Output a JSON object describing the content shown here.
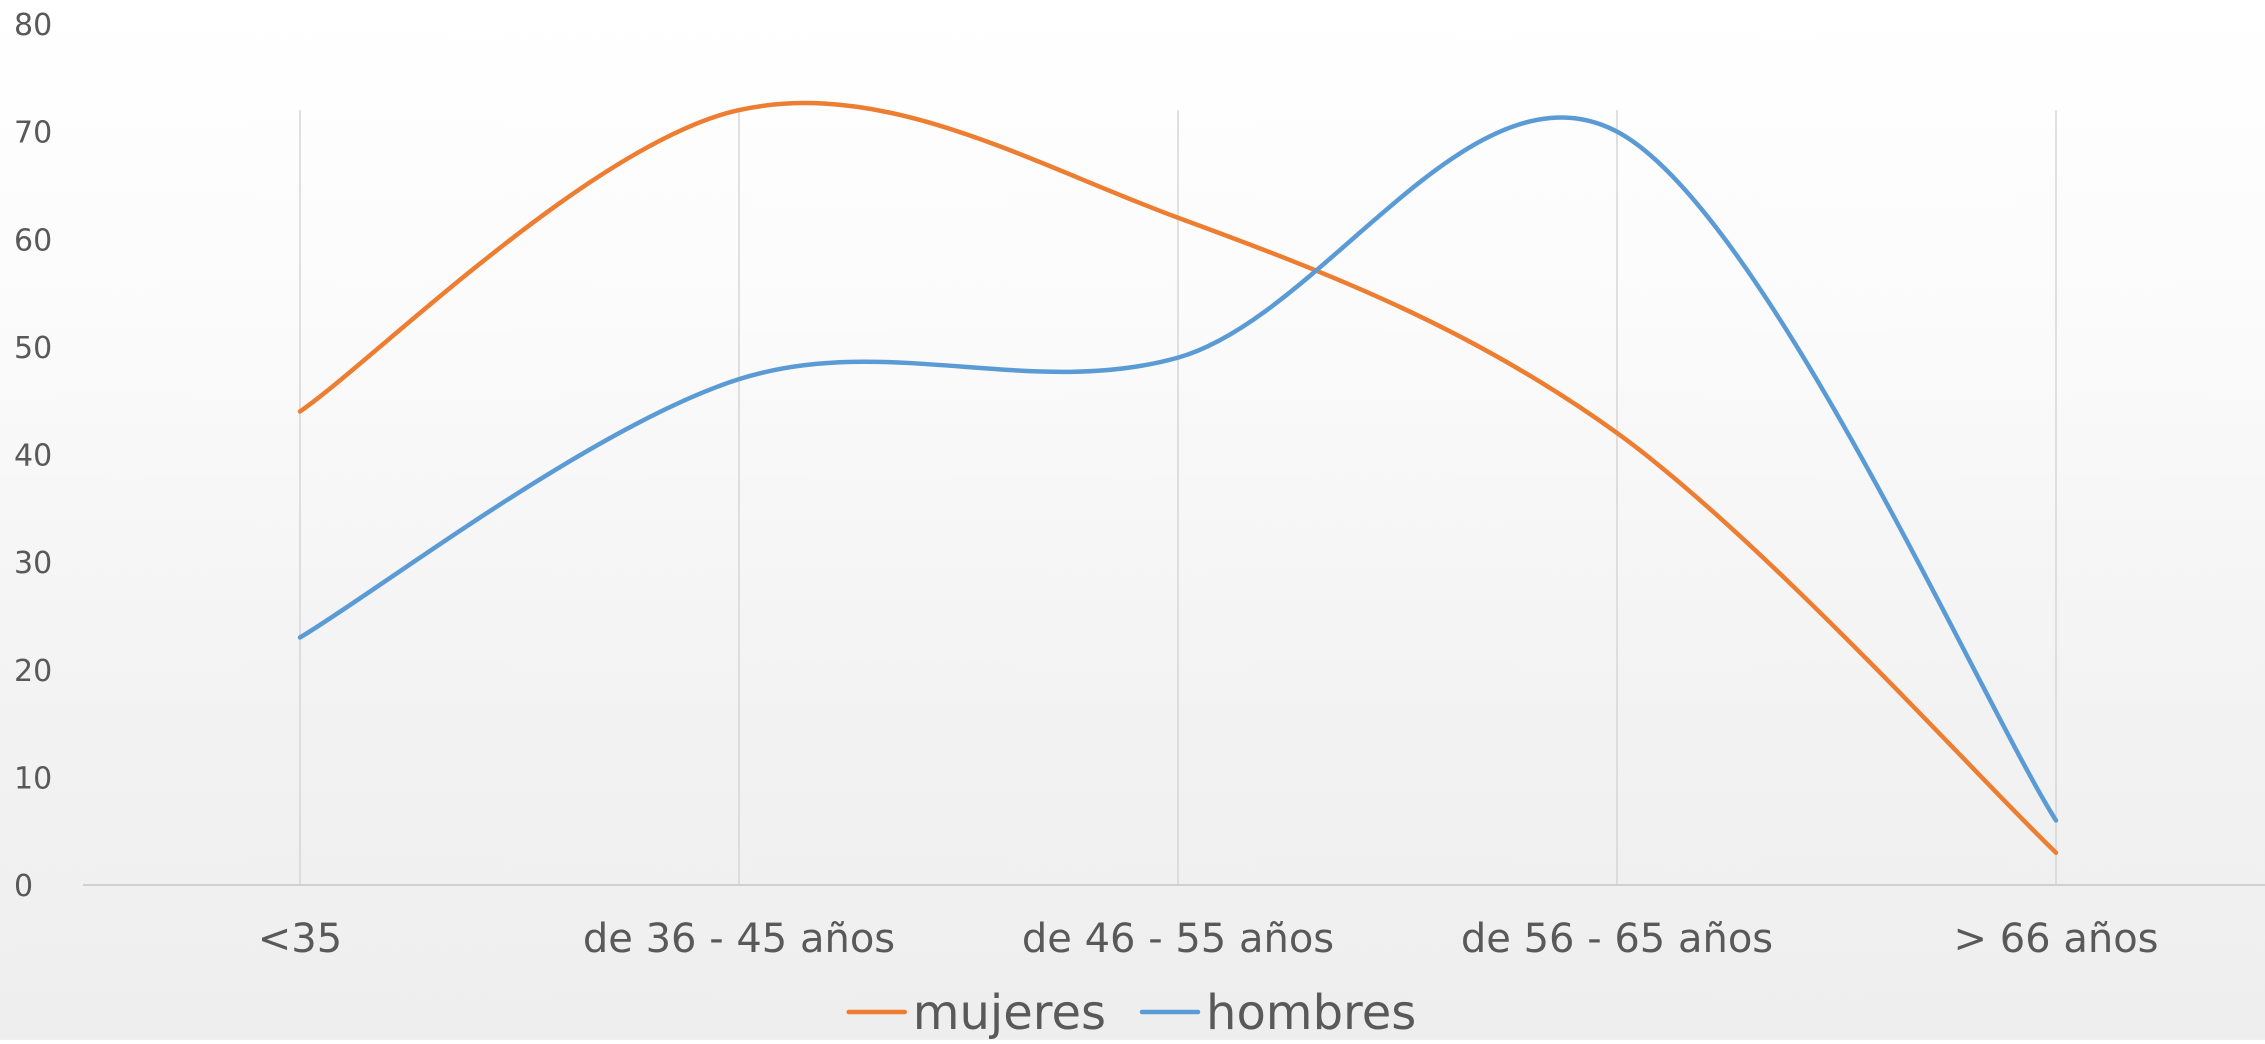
{
  "chart_data": {
    "type": "line",
    "smooth": true,
    "categories": [
      "<35",
      "de 36 - 45 años",
      "de 46 - 55 años",
      "de 56 - 65 años",
      "> 66 años"
    ],
    "series": [
      {
        "name": "mujeres",
        "values": [
          44,
          72,
          62,
          42,
          3
        ],
        "color": "#ED7D31"
      },
      {
        "name": "hombres",
        "values": [
          23,
          47,
          49,
          70,
          6
        ],
        "color": "#5B9BD5"
      }
    ],
    "ylim": [
      0,
      80
    ],
    "yticks": [
      "0",
      "10",
      "20",
      "30",
      "40",
      "50",
      "60",
      "70",
      "80"
    ],
    "grid": {
      "vertical_category_lines": true,
      "horizontal": false
    },
    "legend_position": "bottom",
    "title": "",
    "xlabel": "",
    "ylabel": ""
  }
}
